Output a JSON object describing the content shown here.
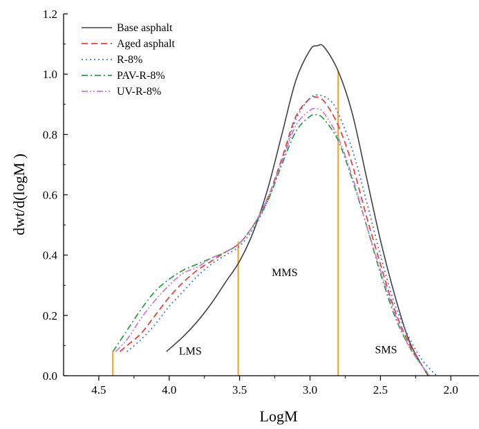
{
  "chart_data": {
    "type": "line",
    "title": "",
    "xlabel": "LogM",
    "ylabel": "dwt/d(logM )",
    "xlim": [
      4.75,
      1.8
    ],
    "ylim": [
      0,
      1.2
    ],
    "x_reversed": true,
    "grid": false,
    "legend_position": "top-left",
    "xticks": [
      {
        "value": 4.5,
        "label": "4.5"
      },
      {
        "value": 4.0,
        "label": "4.0"
      },
      {
        "value": 3.5,
        "label": "3.5"
      },
      {
        "value": 3.0,
        "label": "3.0"
      },
      {
        "value": 2.5,
        "label": "2.5"
      },
      {
        "value": 2.0,
        "label": "2.0"
      }
    ],
    "yticks": [
      {
        "value": 0.0,
        "label": "0.0"
      },
      {
        "value": 0.2,
        "label": "0.2"
      },
      {
        "value": 0.4,
        "label": "0.4"
      },
      {
        "value": 0.6,
        "label": "0.6"
      },
      {
        "value": 0.8,
        "label": "0.8"
      },
      {
        "value": 1.0,
        "label": "1.0"
      },
      {
        "value": 1.2,
        "label": "1.2"
      }
    ],
    "series": [
      {
        "name": "Base asphalt",
        "color": "#404040",
        "dash": "solid",
        "x": [
          4.02,
          3.9,
          3.8,
          3.7,
          3.6,
          3.5,
          3.4,
          3.3,
          3.2,
          3.1,
          3.0,
          2.95,
          2.9,
          2.8,
          2.7,
          2.6,
          2.5,
          2.4,
          2.3,
          2.2,
          2.16
        ],
        "y": [
          0.08,
          0.13,
          0.18,
          0.24,
          0.31,
          0.38,
          0.48,
          0.62,
          0.8,
          0.98,
          1.08,
          1.094,
          1.09,
          1.01,
          0.87,
          0.66,
          0.45,
          0.27,
          0.12,
          0.03,
          0.0
        ]
      },
      {
        "name": "Aged asphalt",
        "color": "#e8413c",
        "dash": "dashed",
        "x": [
          4.35,
          4.3,
          4.2,
          4.1,
          4.0,
          3.9,
          3.8,
          3.7,
          3.6,
          3.5,
          3.4,
          3.3,
          3.2,
          3.1,
          3.0,
          2.97,
          2.9,
          2.8,
          2.7,
          2.6,
          2.5,
          2.4,
          2.3,
          2.2,
          2.15
        ],
        "y": [
          0.08,
          0.1,
          0.14,
          0.2,
          0.26,
          0.31,
          0.35,
          0.38,
          0.41,
          0.44,
          0.5,
          0.59,
          0.72,
          0.86,
          0.92,
          0.925,
          0.91,
          0.83,
          0.7,
          0.53,
          0.37,
          0.22,
          0.11,
          0.03,
          0.0
        ]
      },
      {
        "name": "R-8%",
        "color": "#3b78d8",
        "dash": "dotted",
        "x": [
          4.3,
          4.2,
          4.1,
          4.0,
          3.9,
          3.8,
          3.7,
          3.6,
          3.5,
          3.4,
          3.3,
          3.2,
          3.1,
          3.0,
          2.93,
          2.85,
          2.8,
          2.7,
          2.6,
          2.5,
          2.4,
          2.3,
          2.2,
          2.1
        ],
        "y": [
          0.08,
          0.12,
          0.17,
          0.23,
          0.28,
          0.33,
          0.37,
          0.4,
          0.43,
          0.49,
          0.58,
          0.71,
          0.85,
          0.92,
          0.93,
          0.91,
          0.87,
          0.75,
          0.58,
          0.4,
          0.24,
          0.13,
          0.05,
          0.0
        ]
      },
      {
        "name": "PAV-R-8%",
        "color": "#2e9e4a",
        "dash": "dashdot",
        "x": [
          4.4,
          4.3,
          4.2,
          4.1,
          4.0,
          3.9,
          3.8,
          3.7,
          3.6,
          3.5,
          3.4,
          3.3,
          3.2,
          3.1,
          3.0,
          2.95,
          2.9,
          2.8,
          2.7,
          2.6,
          2.5,
          2.4,
          2.3,
          2.2,
          2.15
        ],
        "y": [
          0.08,
          0.15,
          0.22,
          0.28,
          0.32,
          0.35,
          0.37,
          0.39,
          0.41,
          0.44,
          0.5,
          0.58,
          0.7,
          0.81,
          0.86,
          0.865,
          0.85,
          0.78,
          0.65,
          0.5,
          0.34,
          0.2,
          0.1,
          0.03,
          0.0
        ]
      },
      {
        "name": "UV-R-8%",
        "color": "#c77bd9",
        "dash": "dashdotdot",
        "x": [
          4.38,
          4.3,
          4.2,
          4.1,
          4.0,
          3.9,
          3.8,
          3.7,
          3.6,
          3.5,
          3.4,
          3.3,
          3.2,
          3.1,
          3.0,
          2.95,
          2.9,
          2.8,
          2.7,
          2.6,
          2.5,
          2.4,
          2.3,
          2.2,
          2.15
        ],
        "y": [
          0.08,
          0.12,
          0.19,
          0.25,
          0.3,
          0.34,
          0.36,
          0.39,
          0.41,
          0.44,
          0.5,
          0.59,
          0.71,
          0.83,
          0.88,
          0.885,
          0.87,
          0.79,
          0.66,
          0.5,
          0.35,
          0.21,
          0.1,
          0.03,
          0.0
        ]
      }
    ],
    "boundary_lines": {
      "color": "#f39c1f",
      "lines": [
        {
          "x": 4.4,
          "y_top": 0.08
        },
        {
          "x": 3.51,
          "y_top": 0.445
        },
        {
          "x": 2.8,
          "y_top": 1.01
        }
      ]
    },
    "region_labels": [
      {
        "text": "LMS",
        "x": 3.85,
        "y": 0.07
      },
      {
        "text": "MMS",
        "x": 3.18,
        "y": 0.33
      },
      {
        "text": "SMS",
        "x": 2.46,
        "y": 0.075
      }
    ]
  }
}
